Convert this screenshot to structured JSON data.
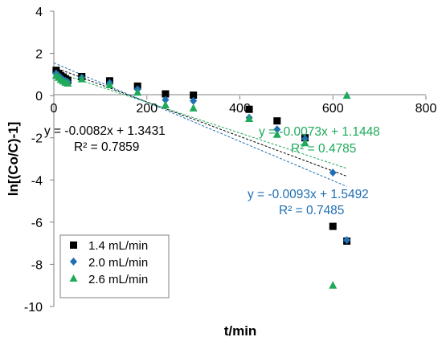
{
  "chart_data": {
    "type": "scatter",
    "xlabel": "t/min",
    "ylabel": "ln[(Co/C)-1]",
    "xlim": [
      0,
      800
    ],
    "ylim": [
      -10,
      4
    ],
    "x_ticks": [
      "0",
      "200",
      "400",
      "600",
      "800"
    ],
    "y_ticks": [
      "4",
      "2",
      "0",
      "-2",
      "-4",
      "-6",
      "-8",
      "-10"
    ],
    "grid": false,
    "legend_position": "bottom-left",
    "series": [
      {
        "name": "1.4 mL/min",
        "marker": "square",
        "color": "#000000",
        "points": [
          [
            5,
            1.2
          ],
          [
            10,
            1.05
          ],
          [
            15,
            0.95
          ],
          [
            20,
            0.88
          ],
          [
            25,
            0.8
          ],
          [
            30,
            0.72
          ],
          [
            60,
            0.9
          ],
          [
            120,
            0.7
          ],
          [
            180,
            0.45
          ],
          [
            240,
            0.08
          ],
          [
            300,
            0.02
          ],
          [
            420,
            -0.65
          ],
          [
            480,
            -1.2
          ],
          [
            540,
            -2.0
          ],
          [
            600,
            -6.2
          ],
          [
            630,
            -6.9
          ]
        ],
        "trendline": {
          "slope": -0.0082,
          "intercept": 1.3431,
          "color": "#000000",
          "equation": "y = -0.0082x + 1.3431",
          "r2": "R² = 0.7859"
        }
      },
      {
        "name": "2.0 mL/min",
        "marker": "diamond",
        "color": "#1F6FB4",
        "points": [
          [
            5,
            1.05
          ],
          [
            10,
            0.95
          ],
          [
            15,
            0.85
          ],
          [
            20,
            0.75
          ],
          [
            25,
            0.7
          ],
          [
            30,
            0.65
          ],
          [
            60,
            0.85
          ],
          [
            120,
            0.6
          ],
          [
            180,
            0.3
          ],
          [
            240,
            -0.2
          ],
          [
            300,
            -0.25
          ],
          [
            420,
            -1.05
          ],
          [
            480,
            -1.6
          ],
          [
            540,
            -2.05
          ],
          [
            600,
            -3.65
          ],
          [
            630,
            -6.85
          ]
        ],
        "trendline": {
          "slope": -0.0093,
          "intercept": 1.5492,
          "color": "#1F6FB4",
          "equation": "y = -0.0093x + 1.5492",
          "r2": "R² = 0.7485"
        }
      },
      {
        "name": "2.6 mL/min",
        "marker": "triangle",
        "color": "#1EAA5A",
        "points": [
          [
            5,
            0.95
          ],
          [
            10,
            0.85
          ],
          [
            15,
            0.75
          ],
          [
            20,
            0.68
          ],
          [
            25,
            0.62
          ],
          [
            30,
            0.58
          ],
          [
            60,
            0.78
          ],
          [
            120,
            0.5
          ],
          [
            180,
            0.15
          ],
          [
            240,
            -0.45
          ],
          [
            300,
            -0.6
          ],
          [
            420,
            -1.1
          ],
          [
            480,
            -1.85
          ],
          [
            540,
            -2.25
          ],
          [
            600,
            -9.0
          ],
          [
            630,
            0.0
          ]
        ],
        "trendline": {
          "slope": -0.0073,
          "intercept": 1.1448,
          "color": "#1EAA5A",
          "equation": "y = -0.0073x + 1.1448",
          "r2": "R² = 0.4785"
        }
      }
    ]
  }
}
